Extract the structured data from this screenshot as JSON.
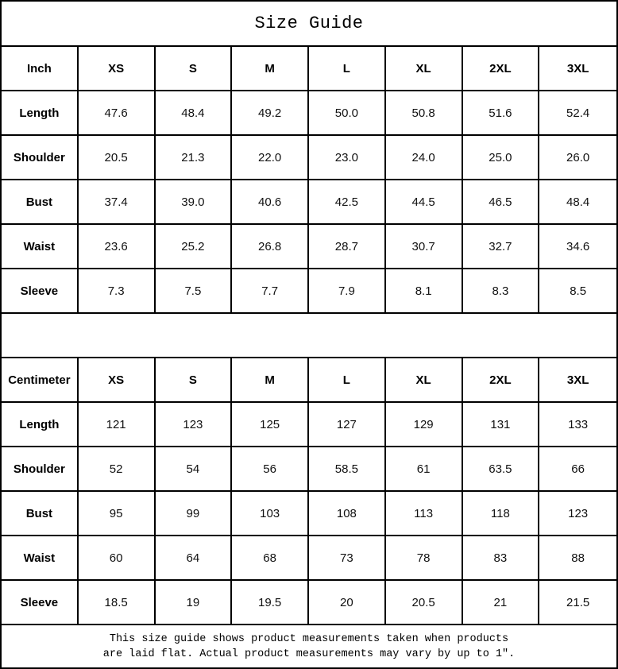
{
  "title": "Size Guide",
  "sizes": [
    "XS",
    "S",
    "M",
    "L",
    "XL",
    "2XL",
    "3XL"
  ],
  "tables": [
    {
      "unit_label": "Inch",
      "rows": [
        {
          "label": "Length",
          "values": [
            "47.6",
            "48.4",
            "49.2",
            "50.0",
            "50.8",
            "51.6",
            "52.4"
          ]
        },
        {
          "label": "Shoulder",
          "values": [
            "20.5",
            "21.3",
            "22.0",
            "23.0",
            "24.0",
            "25.0",
            "26.0"
          ]
        },
        {
          "label": "Bust",
          "values": [
            "37.4",
            "39.0",
            "40.6",
            "42.5",
            "44.5",
            "46.5",
            "48.4"
          ]
        },
        {
          "label": "Waist",
          "values": [
            "23.6",
            "25.2",
            "26.8",
            "28.7",
            "30.7",
            "32.7",
            "34.6"
          ]
        },
        {
          "label": "Sleeve",
          "values": [
            "7.3",
            "7.5",
            "7.7",
            "7.9",
            "8.1",
            "8.3",
            "8.5"
          ]
        }
      ]
    },
    {
      "unit_label": "Centimeter",
      "rows": [
        {
          "label": "Length",
          "values": [
            "121",
            "123",
            "125",
            "127",
            "129",
            "131",
            "133"
          ]
        },
        {
          "label": "Shoulder",
          "values": [
            "52",
            "54",
            "56",
            "58.5",
            "61",
            "63.5",
            "66"
          ]
        },
        {
          "label": "Bust",
          "values": [
            "95",
            "99",
            "103",
            "108",
            "113",
            "118",
            "123"
          ]
        },
        {
          "label": "Waist",
          "values": [
            "60",
            "64",
            "68",
            "73",
            "78",
            "83",
            "88"
          ]
        },
        {
          "label": "Sleeve",
          "values": [
            "18.5",
            "19",
            "19.5",
            "20",
            "20.5",
            "21",
            "21.5"
          ]
        }
      ]
    }
  ],
  "footer": {
    "line1": "This size guide shows product measurements taken when products",
    "line2": "are laid flat. Actual product measurements may vary by up to 1″."
  },
  "colors": {
    "border": "#000000",
    "background": "#ffffff",
    "text": "#000000"
  }
}
